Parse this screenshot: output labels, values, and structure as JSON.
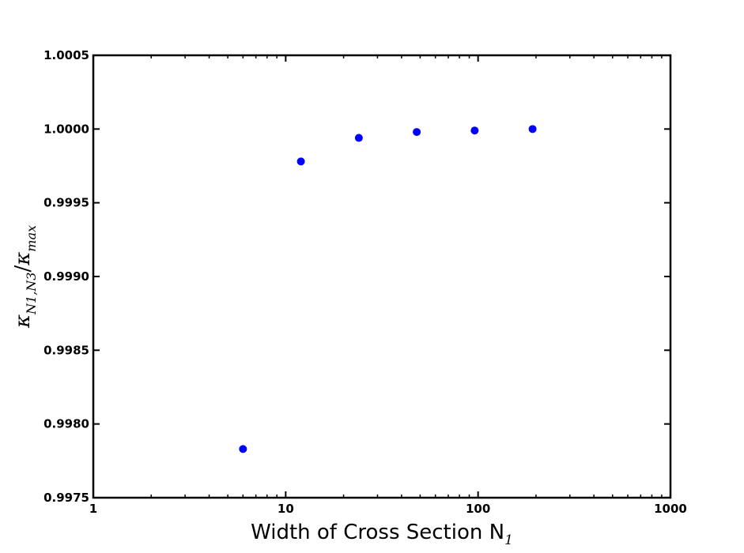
{
  "chart_data": {
    "type": "scatter",
    "title": "",
    "xlabel": "Width of Cross Section N",
    "xlabel_sub": "1",
    "ylabel": "κ",
    "ylabel_sub": "N1,N3",
    "ylabel_denominator": "κ",
    "ylabel_denominator_sub": "max",
    "x_scale": "log",
    "xlim": [
      1,
      1000
    ],
    "ylim": [
      0.9975,
      1.0005
    ],
    "x_ticks": [
      1,
      10,
      100,
      1000
    ],
    "x_tick_labels": [
      "1",
      "10",
      "100",
      "1000"
    ],
    "y_ticks": [
      0.9975,
      0.998,
      0.9985,
      0.999,
      0.9995,
      1.0,
      1.0005
    ],
    "y_tick_labels": [
      "0.9975",
      "0.9980",
      "0.9985",
      "0.9990",
      "0.9995",
      "1.0000",
      "1.0005"
    ],
    "grid": false,
    "marker_color": "#0000ff",
    "series": [
      {
        "x": [
          6,
          12,
          24,
          48,
          96,
          192
        ],
        "y": [
          0.99783,
          0.99978,
          0.99994,
          0.99998,
          0.99999,
          1.0
        ]
      }
    ]
  }
}
